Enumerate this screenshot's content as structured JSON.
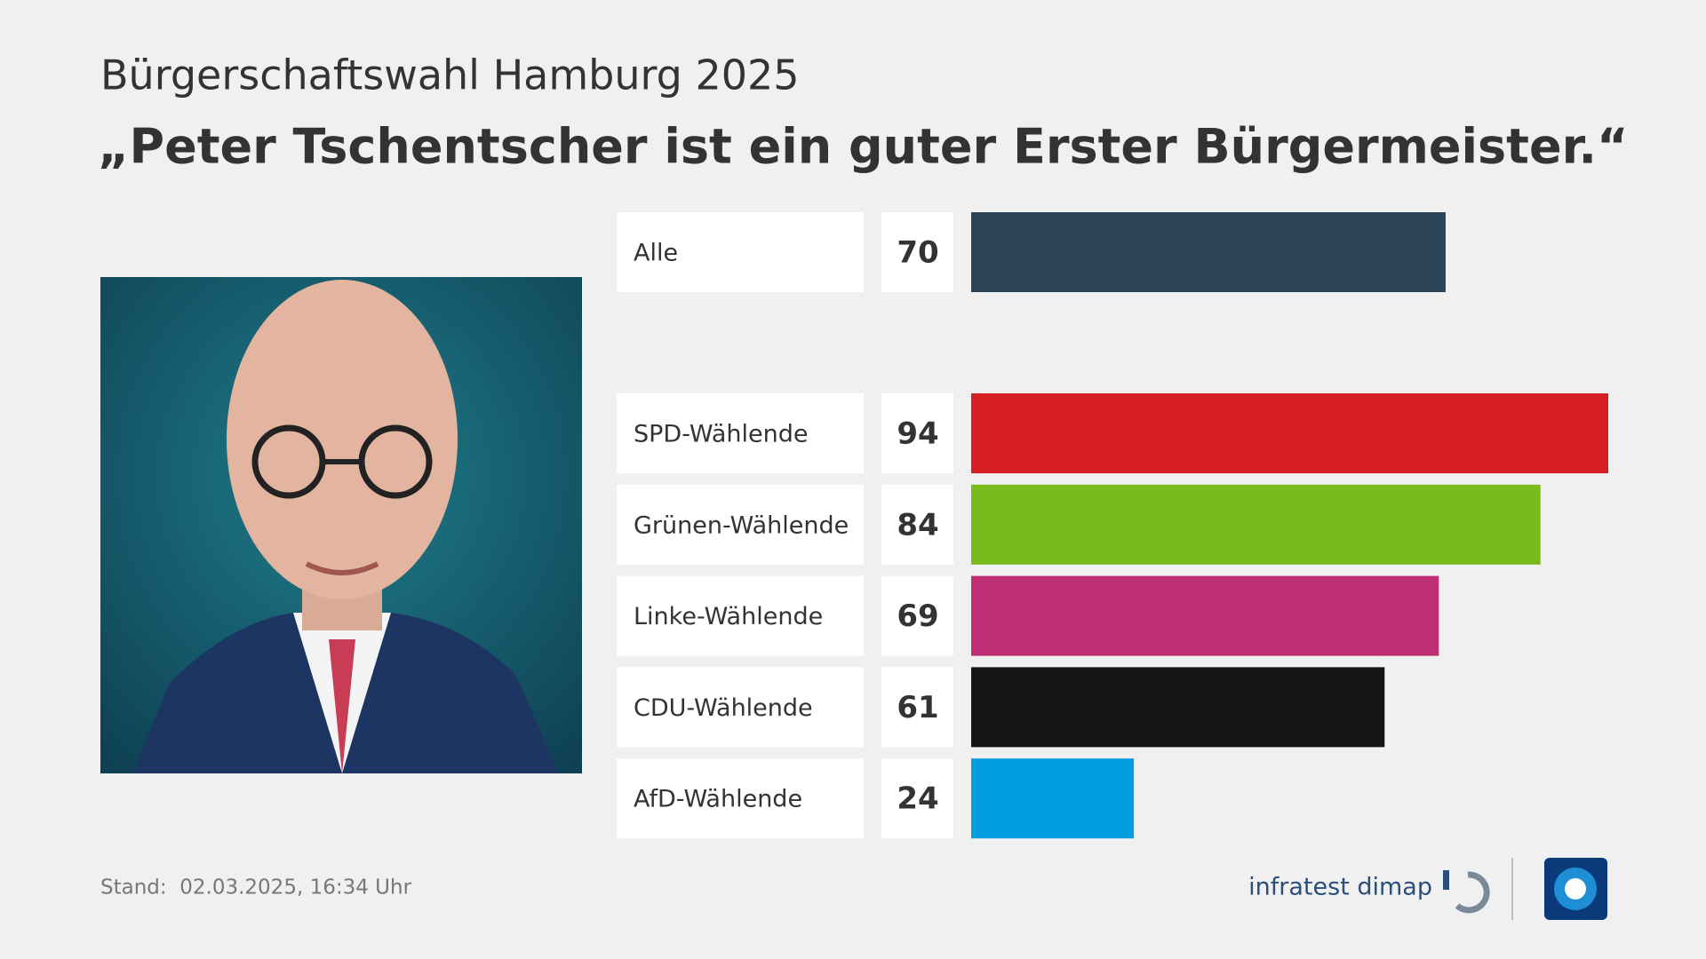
{
  "chart_data": {
    "type": "bar",
    "orientation": "horizontal",
    "subtitle": "Bürgerschaftswahl Hamburg 2025",
    "title": "„Peter Tschentscher ist ein guter Erster Bürgermeister.“",
    "categories": [
      "Alle",
      "SPD-Wählende",
      "Grünen-Wählende",
      "Linke-Wählende",
      "CDU-Wählende",
      "AfD-Wählende"
    ],
    "values": [
      70,
      94,
      84,
      69,
      61,
      24
    ],
    "colors": [
      "#2a4357",
      "#d51f20",
      "#78bc1c",
      "#bd2e74",
      "#141414",
      "#009ee0"
    ],
    "footer": "Stand:  02.03.2025, 16:34 Uhr",
    "source": "infratest dimap"
  }
}
